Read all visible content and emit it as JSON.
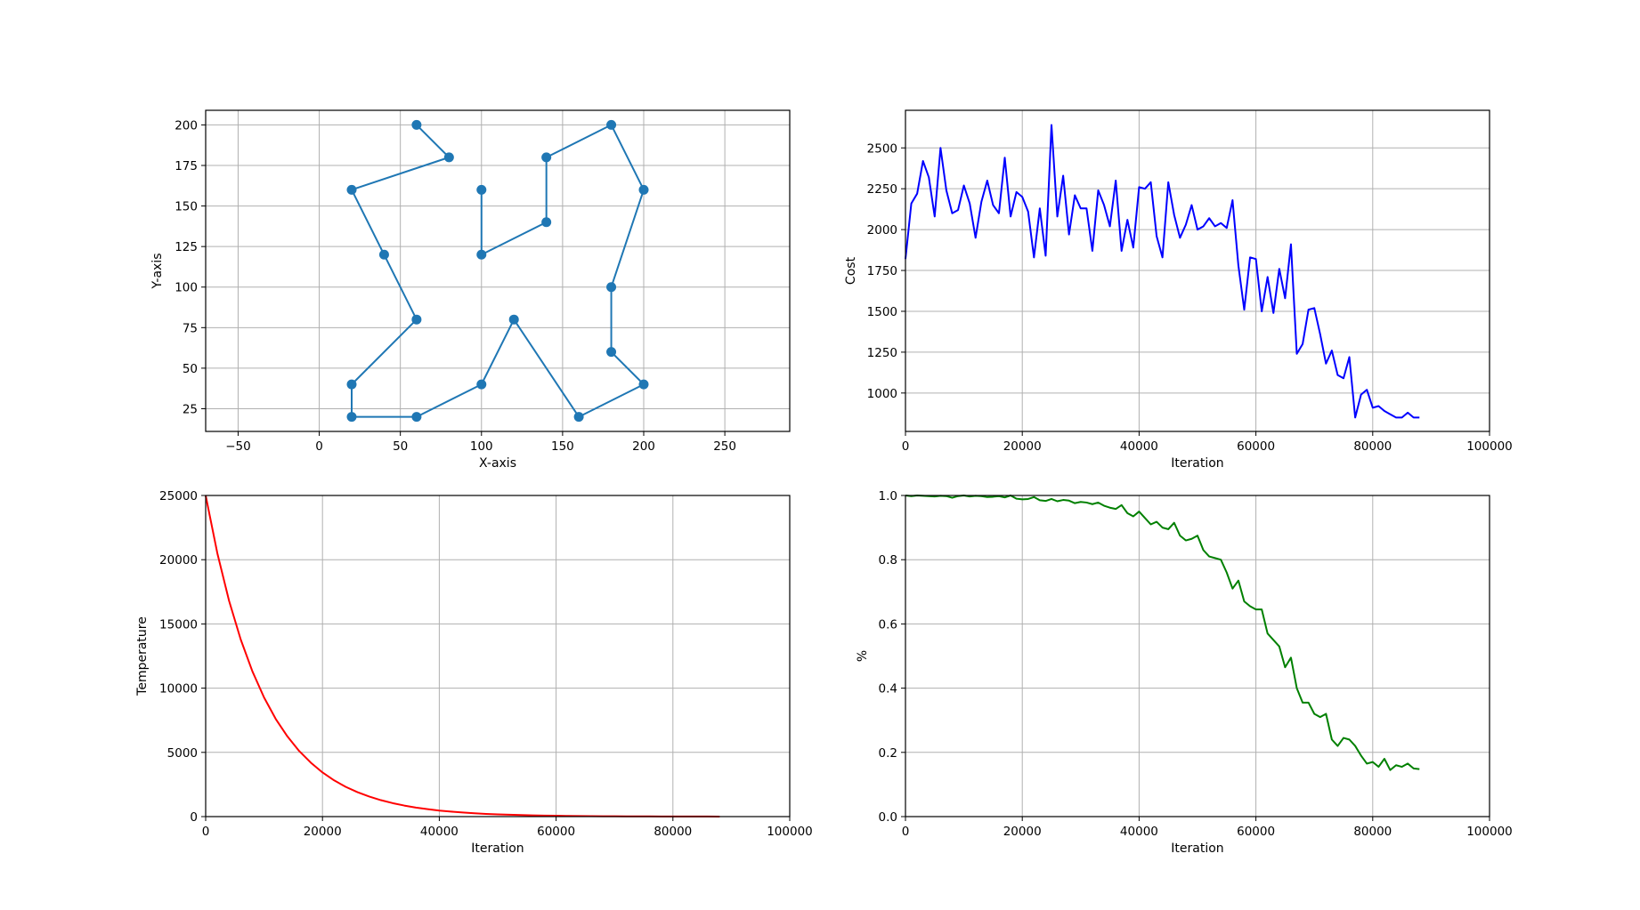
{
  "figure": {
    "background": "#ffffff",
    "grid_color": "#b0b0b0",
    "grid": true
  },
  "chart_data": [
    {
      "id": "route",
      "type": "line",
      "markers": true,
      "color": "#1f77b4",
      "xlabel": "X-axis",
      "ylabel": "Y-axis",
      "xlim": [
        -70,
        290
      ],
      "ylim": [
        11,
        209
      ],
      "xticks": [
        -50,
        0,
        50,
        100,
        150,
        200,
        250
      ],
      "yticks": [
        25,
        50,
        75,
        100,
        125,
        150,
        175,
        200
      ],
      "series": [
        {
          "x": [
            60,
            80,
            20,
            40,
            60,
            20,
            20,
            60,
            100,
            120,
            160,
            200,
            180,
            180,
            200,
            180,
            140,
            140,
            100,
            100
          ],
          "y": [
            200,
            180,
            160,
            120,
            80,
            40,
            20,
            20,
            40,
            80,
            20,
            40,
            60,
            100,
            160,
            200,
            180,
            140,
            120,
            160
          ]
        }
      ]
    },
    {
      "id": "cost",
      "type": "line",
      "color": "#0000ff",
      "xlabel": "Iteration",
      "ylabel": "Cost",
      "xlim": [
        0,
        100000
      ],
      "ylim": [
        765,
        2730
      ],
      "xticks": [
        0,
        20000,
        40000,
        60000,
        80000,
        100000
      ],
      "yticks": [
        1000,
        1250,
        1500,
        1750,
        2000,
        2250,
        2500
      ],
      "series": [
        {
          "x": [
            0,
            1000,
            2000,
            3000,
            4000,
            5000,
            6000,
            7000,
            8000,
            9000,
            10000,
            11000,
            12000,
            13000,
            14000,
            15000,
            16000,
            17000,
            18000,
            19000,
            20000,
            21000,
            22000,
            23000,
            24000,
            25000,
            26000,
            27000,
            28000,
            29000,
            30000,
            31000,
            32000,
            33000,
            34000,
            35000,
            36000,
            37000,
            38000,
            39000,
            40000,
            41000,
            42000,
            43000,
            44000,
            45000,
            46000,
            47000,
            48000,
            49000,
            50000,
            51000,
            52000,
            53000,
            54000,
            55000,
            56000,
            57000,
            58000,
            59000,
            60000,
            61000,
            62000,
            63000,
            64000,
            65000,
            66000,
            67000,
            68000,
            69000,
            70000,
            71000,
            72000,
            73000,
            74000,
            75000,
            76000,
            77000,
            78000,
            79000,
            80000,
            81000,
            82000,
            83000,
            84000,
            85000,
            86000,
            87000,
            88000
          ],
          "y": [
            1820,
            2160,
            2220,
            2420,
            2320,
            2080,
            2500,
            2240,
            2100,
            2120,
            2270,
            2160,
            1950,
            2170,
            2300,
            2150,
            2100,
            2440,
            2080,
            2230,
            2200,
            2110,
            1830,
            2130,
            1840,
            2640,
            2080,
            2330,
            1970,
            2210,
            2130,
            2130,
            1870,
            2240,
            2150,
            2020,
            2300,
            1870,
            2060,
            1890,
            2260,
            2250,
            2290,
            1960,
            1830,
            2290,
            2090,
            1950,
            2030,
            2150,
            2000,
            2020,
            2070,
            2020,
            2040,
            2010,
            2180,
            1780,
            1510,
            1830,
            1820,
            1500,
            1710,
            1490,
            1760,
            1580,
            1910,
            1240,
            1300,
            1510,
            1520,
            1360,
            1180,
            1260,
            1110,
            1090,
            1220,
            850,
            990,
            1020,
            910,
            920,
            890,
            870,
            850,
            850,
            880,
            850,
            850
          ]
        }
      ]
    },
    {
      "id": "temperature",
      "type": "line",
      "color": "#ff0000",
      "xlabel": "Iteration",
      "ylabel": "Temperature",
      "xlim": [
        0,
        100000
      ],
      "ylim": [
        0,
        25000
      ],
      "xticks": [
        0,
        20000,
        40000,
        60000,
        80000,
        100000
      ],
      "yticks": [
        0,
        5000,
        10000,
        15000,
        20000,
        25000
      ],
      "series": [
        {
          "x": [
            0,
            2000,
            4000,
            6000,
            8000,
            10000,
            12000,
            14000,
            16000,
            18000,
            20000,
            22000,
            24000,
            26000,
            28000,
            30000,
            32000,
            34000,
            36000,
            38000,
            40000,
            42000,
            44000,
            46000,
            48000,
            50000,
            52000,
            54000,
            56000,
            58000,
            60000,
            62000,
            64000,
            66000,
            68000,
            70000,
            72000,
            74000,
            76000,
            78000,
            80000,
            82000,
            84000,
            86000,
            88000
          ],
          "y": [
            25000,
            20500,
            16810,
            13790,
            11310,
            9270,
            7600,
            6240,
            5110,
            4200,
            3440,
            2820,
            2310,
            1900,
            1560,
            1280,
            1050,
            860,
            700,
            580,
            470,
            390,
            320,
            260,
            210,
            175,
            145,
            118,
            97,
            80,
            65,
            53,
            44,
            36,
            30,
            24,
            20,
            16,
            13,
            11,
            9,
            7,
            6,
            5,
            4
          ]
        }
      ]
    },
    {
      "id": "percent",
      "type": "line",
      "color": "#008000",
      "xlabel": "Iteration",
      "ylabel": "%",
      "xlim": [
        0,
        100000
      ],
      "ylim": [
        0,
        1
      ],
      "xticks": [
        0,
        20000,
        40000,
        60000,
        80000,
        100000
      ],
      "yticks": [
        0,
        0.2,
        0.4,
        0.6,
        0.8,
        1
      ],
      "ytick_labels": [
        "0.0",
        "0.2",
        "0.4",
        "0.6",
        "0.8",
        "1.0"
      ],
      "series": [
        {
          "x": [
            0,
            1000,
            2000,
            3000,
            4000,
            5000,
            6000,
            7000,
            8000,
            9000,
            10000,
            11000,
            12000,
            13000,
            14000,
            15000,
            16000,
            17000,
            18000,
            19000,
            20000,
            21000,
            22000,
            23000,
            24000,
            25000,
            26000,
            27000,
            28000,
            29000,
            30000,
            31000,
            32000,
            33000,
            34000,
            35000,
            36000,
            37000,
            38000,
            39000,
            40000,
            41000,
            42000,
            43000,
            44000,
            45000,
            46000,
            47000,
            48000,
            49000,
            50000,
            51000,
            52000,
            53000,
            54000,
            55000,
            56000,
            57000,
            58000,
            59000,
            60000,
            61000,
            62000,
            63000,
            64000,
            65000,
            66000,
            67000,
            68000,
            69000,
            70000,
            71000,
            72000,
            73000,
            74000,
            75000,
            76000,
            77000,
            78000,
            79000,
            80000,
            81000,
            82000,
            83000,
            84000,
            85000,
            86000,
            87000,
            88000
          ],
          "y": [
            1.0,
            0.998,
            1.0,
            0.999,
            0.998,
            0.997,
            0.999,
            0.998,
            0.993,
            0.998,
            1.0,
            0.997,
            0.999,
            0.998,
            0.995,
            0.996,
            0.998,
            0.994,
            1.0,
            0.99,
            0.988,
            0.989,
            0.995,
            0.985,
            0.983,
            0.989,
            0.982,
            0.986,
            0.984,
            0.976,
            0.98,
            0.978,
            0.973,
            0.978,
            0.968,
            0.962,
            0.958,
            0.97,
            0.945,
            0.935,
            0.95,
            0.93,
            0.91,
            0.918,
            0.9,
            0.895,
            0.915,
            0.875,
            0.86,
            0.865,
            0.875,
            0.83,
            0.81,
            0.805,
            0.8,
            0.76,
            0.71,
            0.735,
            0.67,
            0.655,
            0.645,
            0.645,
            0.57,
            0.55,
            0.53,
            0.465,
            0.495,
            0.4,
            0.355,
            0.355,
            0.32,
            0.31,
            0.32,
            0.24,
            0.22,
            0.245,
            0.24,
            0.22,
            0.19,
            0.165,
            0.17,
            0.155,
            0.18,
            0.145,
            0.16,
            0.155,
            0.165,
            0.15,
            0.148
          ]
        }
      ]
    }
  ]
}
